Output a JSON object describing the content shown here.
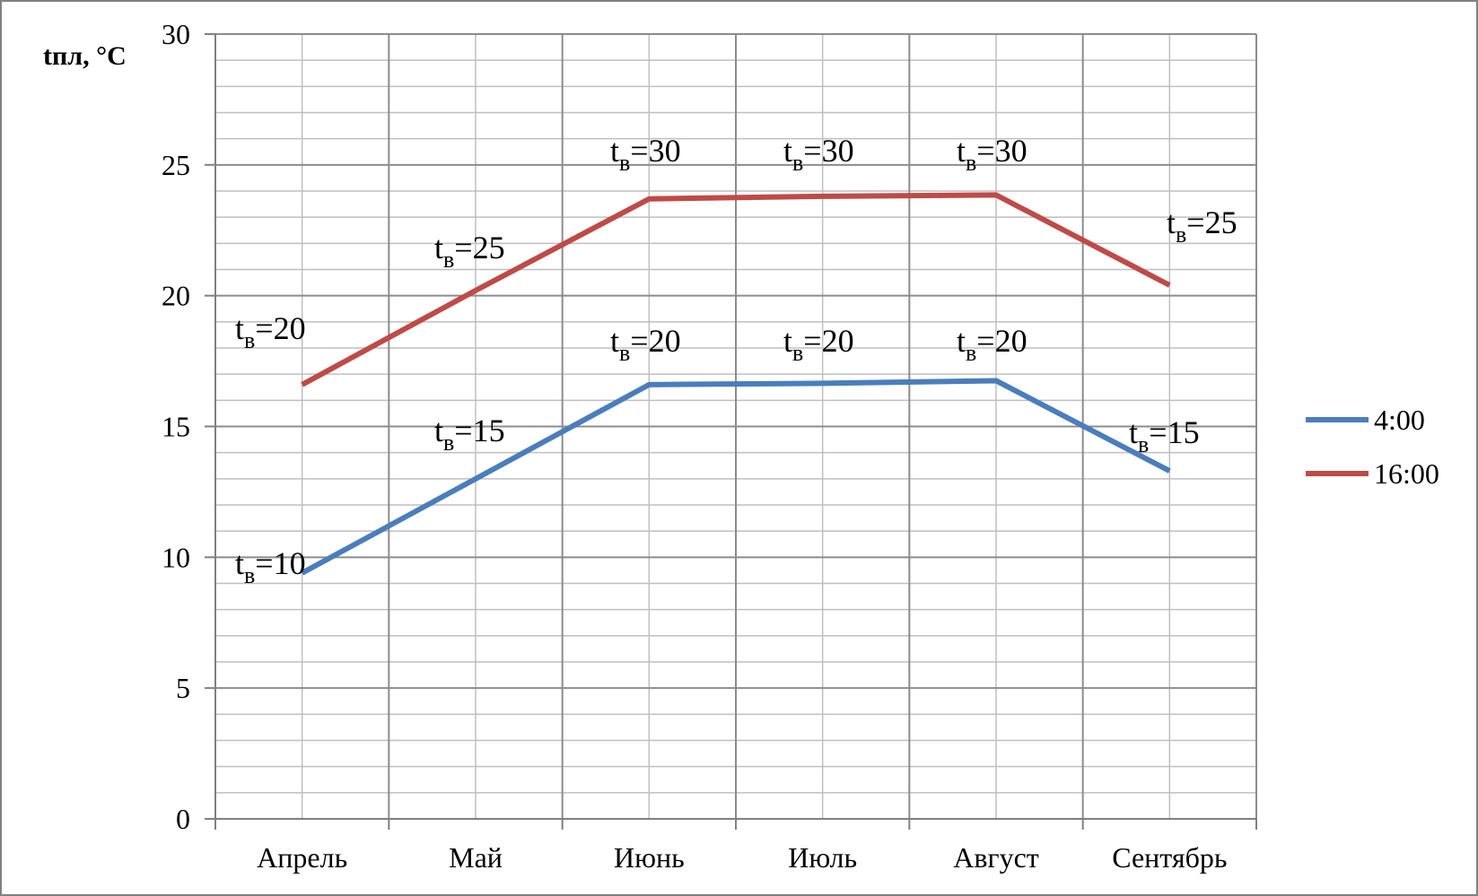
{
  "chart_data": {
    "type": "line",
    "ylabel": "tпл, °C",
    "xlabel": "",
    "ylim": [
      0,
      30
    ],
    "yticks": [
      "0",
      "5",
      "10",
      "15",
      "20",
      "25",
      "30"
    ],
    "categories": [
      "Апрель",
      "Май",
      "Июнь",
      "Июль",
      "Август",
      "Сентябрь"
    ],
    "grid": true,
    "legend_position": "right",
    "series": [
      {
        "name": "4:00",
        "color": "#4a7ebb",
        "values": [
          9.4,
          13.0,
          16.6,
          16.65,
          16.75,
          13.3
        ],
        "annotations": [
          {
            "main": "t",
            "sub": "в",
            "value": "=10"
          },
          {
            "main": "t",
            "sub": "в",
            "value": "=15"
          },
          {
            "main": "t",
            "sub": "в",
            "value": "=20"
          },
          {
            "main": "t",
            "sub": "в",
            "value": "=20"
          },
          {
            "main": "t",
            "sub": "в",
            "value": "=20"
          },
          {
            "main": "t",
            "sub": "в",
            "value": "=15"
          }
        ]
      },
      {
        "name": "16:00",
        "color": "#be4b48",
        "values": [
          16.6,
          20.2,
          23.7,
          23.8,
          23.85,
          20.4
        ],
        "annotations": [
          {
            "main": "t",
            "sub": "в",
            "value": "=20"
          },
          {
            "main": "t",
            "sub": "в",
            "value": "=25"
          },
          {
            "main": "t",
            "sub": "в",
            "value": "=30"
          },
          {
            "main": "t",
            "sub": "в",
            "value": "=30"
          },
          {
            "main": "t",
            "sub": "в",
            "value": "=30"
          },
          {
            "main": "t",
            "sub": "в",
            "value": "=25"
          }
        ]
      }
    ]
  }
}
